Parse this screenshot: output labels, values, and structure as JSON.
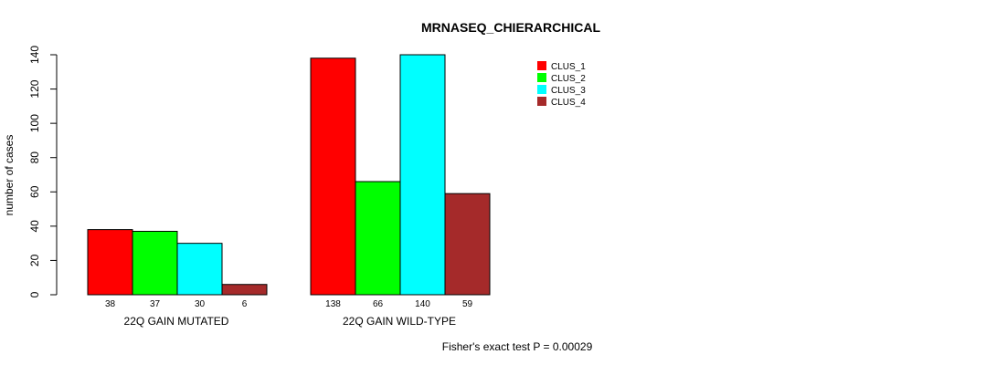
{
  "chart_data": {
    "type": "bar",
    "title": "MRNASEQ_CHIERARCHICAL",
    "ylabel": "number of cases",
    "xlabel": "",
    "ylim": [
      0,
      140
    ],
    "yticks": [
      0,
      20,
      40,
      60,
      80,
      100,
      120,
      140
    ],
    "groups": [
      "22Q GAIN MUTATED",
      "22Q GAIN WILD-TYPE"
    ],
    "series": [
      {
        "name": "CLUS_1",
        "color": "#ff0000",
        "values": [
          38,
          138
        ]
      },
      {
        "name": "CLUS_2",
        "color": "#00ff00",
        "values": [
          37,
          66
        ]
      },
      {
        "name": "CLUS_3",
        "color": "#00ffff",
        "values": [
          30,
          140
        ]
      },
      {
        "name": "CLUS_4",
        "color": "#a52a2a",
        "values": [
          6,
          59
        ]
      }
    ],
    "legend_position": "top-right",
    "grid": false,
    "annotation": "Fisher's exact test P = 0.00029"
  }
}
